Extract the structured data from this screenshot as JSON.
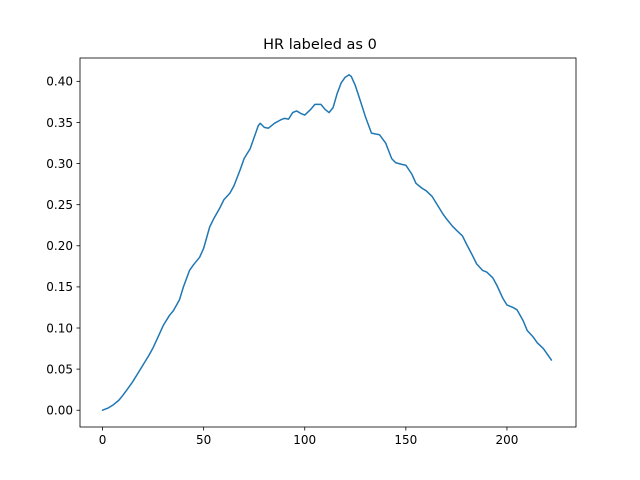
{
  "chart_data": {
    "type": "line",
    "title": "HR labeled as 0",
    "xlabel": "",
    "ylabel": "",
    "xlim": [
      -11.15,
      234.15
    ],
    "ylim": [
      -0.0204,
      0.4284
    ],
    "xticks": [
      0,
      50,
      100,
      150,
      200
    ],
    "yticks": [
      0.0,
      0.05,
      0.1,
      0.15,
      0.2,
      0.25,
      0.3,
      0.35,
      0.4
    ],
    "xtick_labels": [
      "0",
      "50",
      "100",
      "150",
      "200"
    ],
    "ytick_labels": [
      "0.00",
      "0.05",
      "0.10",
      "0.15",
      "0.20",
      "0.25",
      "0.30",
      "0.35",
      "0.40"
    ],
    "grid": false,
    "legend": "none",
    "series": [
      {
        "color": "#1f77b4",
        "x": [
          0,
          3,
          5,
          8,
          10,
          13,
          15,
          18,
          20,
          23,
          25,
          28,
          30,
          33,
          35,
          38,
          40,
          43,
          45,
          48,
          50,
          53,
          55,
          58,
          60,
          63,
          65,
          68,
          70,
          73,
          75,
          77,
          78,
          80,
          82,
          85,
          88,
          90,
          92,
          94,
          96,
          98,
          100,
          103,
          105,
          108,
          110,
          112,
          114,
          116,
          118,
          120,
          122,
          123,
          125,
          127,
          130,
          133,
          135,
          137,
          140,
          143,
          145,
          148,
          150,
          153,
          155,
          158,
          160,
          163,
          165,
          168,
          170,
          173,
          175,
          178,
          180,
          183,
          185,
          188,
          190,
          193,
          195,
          198,
          200,
          203,
          205,
          208,
          210,
          213,
          215,
          218,
          220,
          222
        ],
        "y": [
          0.0,
          0.003,
          0.006,
          0.012,
          0.018,
          0.028,
          0.035,
          0.047,
          0.055,
          0.067,
          0.076,
          0.092,
          0.103,
          0.115,
          0.121,
          0.134,
          0.15,
          0.17,
          0.177,
          0.186,
          0.197,
          0.223,
          0.233,
          0.246,
          0.256,
          0.264,
          0.273,
          0.292,
          0.306,
          0.318,
          0.332,
          0.346,
          0.349,
          0.344,
          0.343,
          0.349,
          0.353,
          0.355,
          0.354,
          0.362,
          0.364,
          0.361,
          0.359,
          0.366,
          0.372,
          0.372,
          0.366,
          0.362,
          0.368,
          0.385,
          0.398,
          0.405,
          0.408,
          0.406,
          0.395,
          0.38,
          0.357,
          0.337,
          0.336,
          0.335,
          0.325,
          0.306,
          0.301,
          0.299,
          0.298,
          0.287,
          0.276,
          0.27,
          0.267,
          0.26,
          0.252,
          0.24,
          0.233,
          0.224,
          0.219,
          0.212,
          0.202,
          0.188,
          0.178,
          0.17,
          0.168,
          0.161,
          0.152,
          0.136,
          0.128,
          0.125,
          0.122,
          0.109,
          0.097,
          0.089,
          0.082,
          0.075,
          0.068,
          0.061
        ]
      }
    ]
  }
}
